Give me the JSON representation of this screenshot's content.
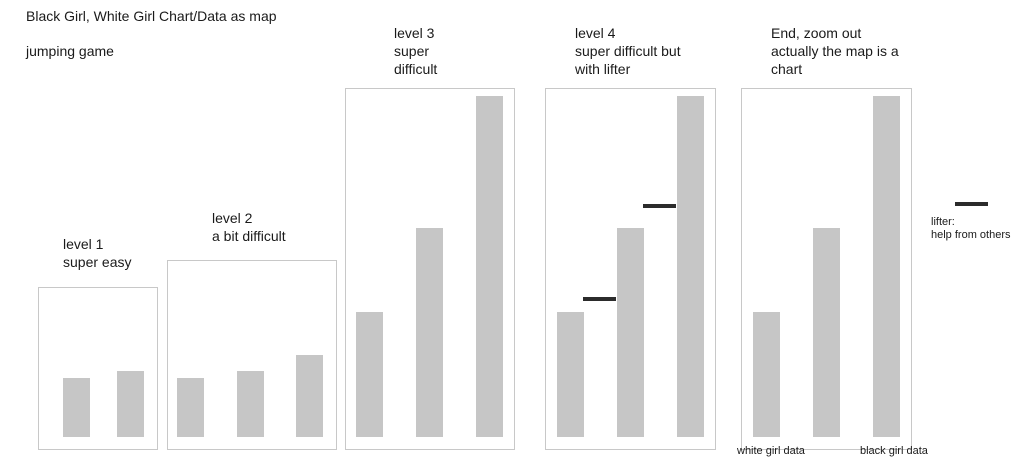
{
  "title": "Black Girl, White Girl Chart/Data as map",
  "subtitle": "jumping game",
  "colors": {
    "bar": "#c6c6c6",
    "lifter": "#2b2b2b",
    "panel_border": "#c8c8c8"
  },
  "levels": [
    {
      "line1": "level 1",
      "line2": "super easy",
      "line3": ""
    },
    {
      "line1": "level 2",
      "line2": "a bit difficult",
      "line3": ""
    },
    {
      "line1": "level 3",
      "line2": "super",
      "line3": "difficult"
    },
    {
      "line1": "level 4",
      "line2": "super difficult but",
      "line3": "with lifter"
    },
    {
      "line1": "End, zoom out",
      "line2": "actually the map is a",
      "line3": "chart"
    }
  ],
  "legend": {
    "line1": "lifter:",
    "line2": "help from others"
  },
  "axis_labels": {
    "left": "white girl data",
    "right": "black girl data"
  },
  "chart_data": [
    {
      "type": "bar",
      "panel": "level 1",
      "values": [
        59,
        66
      ],
      "platforms": []
    },
    {
      "type": "bar",
      "panel": "level 2",
      "values": [
        59,
        66,
        82
      ],
      "platforms": []
    },
    {
      "type": "bar",
      "panel": "level 3",
      "values": [
        125,
        209,
        341
      ],
      "platforms": []
    },
    {
      "type": "bar",
      "panel": "level 4",
      "values": [
        125,
        209,
        341
      ],
      "platforms": [
        140,
        233
      ]
    },
    {
      "type": "bar",
      "panel": "End",
      "values": [
        125,
        209,
        341
      ],
      "platforms": []
    }
  ]
}
